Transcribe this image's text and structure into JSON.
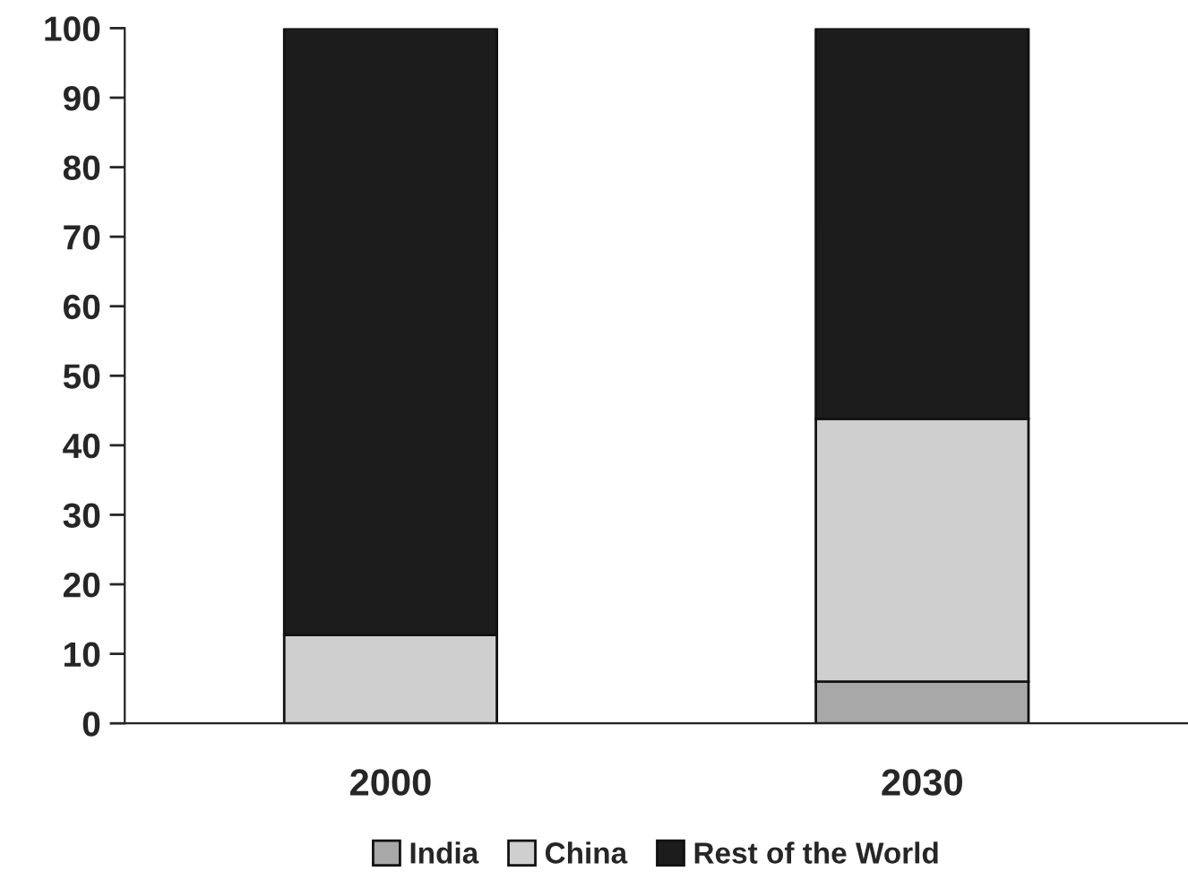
{
  "chart_data": {
    "type": "bar",
    "stacked": true,
    "categories": [
      "2000",
      "2030"
    ],
    "series": [
      {
        "name": "India",
        "color": "#a8a8a8",
        "values": [
          0,
          6
        ]
      },
      {
        "name": "China",
        "color": "#cfcfcf",
        "values": [
          12.7,
          37.8
        ]
      },
      {
        "name": "Rest of the World",
        "color": "#1c1c1c",
        "values": [
          87.3,
          56.2
        ]
      }
    ],
    "ylim": [
      0,
      100
    ],
    "yticks": [
      0,
      10,
      20,
      30,
      40,
      50,
      60,
      70,
      80,
      90,
      100
    ],
    "grid": false,
    "legend": "bottom"
  }
}
